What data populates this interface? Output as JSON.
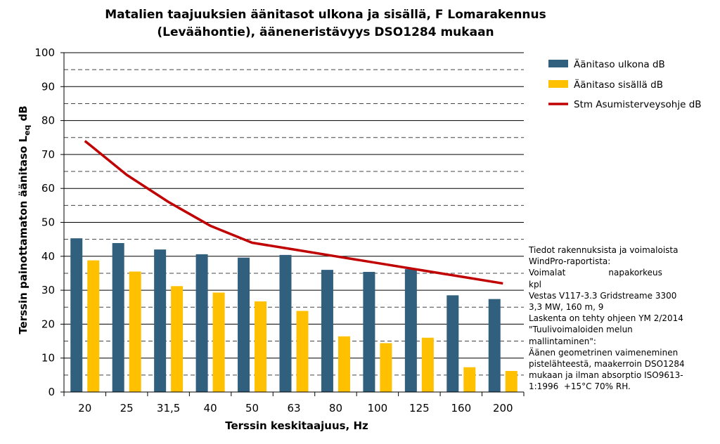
{
  "chart_data": {
    "type": "bar",
    "title_lines": [
      "Matalien taajuuksien äänitasot ulkona ja sisällä, F Lomarakennus",
      "(Leväähontie), ääneneristävyys DSO1284 mukaan"
    ],
    "xlabel": "Terssin keskitaajuus, Hz",
    "ylabel_main": "Terssin painottamaton äänitaso L",
    "ylabel_sub": "eq",
    "ylabel_unit": " dB",
    "categories": [
      "20",
      "25",
      "31,5",
      "40",
      "50",
      "63",
      "80",
      "100",
      "125",
      "160",
      "200"
    ],
    "ylim": [
      0,
      100
    ],
    "yticks": [
      0,
      10,
      20,
      30,
      40,
      50,
      60,
      70,
      80,
      90,
      100
    ],
    "grid": "dashed horizontal at 5-unit intervals",
    "legend_position": "right",
    "series": [
      {
        "name": "Äänitaso ulkona dB",
        "type": "bar",
        "color": "#31607f",
        "values": [
          45.3,
          43.9,
          42.0,
          40.6,
          39.6,
          40.4,
          36.0,
          35.4,
          36.2,
          28.5,
          27.4
        ]
      },
      {
        "name": "Äänitaso sisällä dB",
        "type": "bar",
        "color": "#ffc000",
        "values": [
          38.8,
          35.5,
          31.2,
          29.3,
          26.7,
          23.9,
          16.4,
          14.4,
          16.0,
          7.3,
          6.2
        ]
      },
      {
        "name": "Stm Asumisterveysohje dB",
        "type": "line",
        "color": "#c00000",
        "values": [
          74,
          64,
          56,
          49,
          44,
          42,
          40,
          38,
          36,
          34,
          32
        ]
      }
    ]
  },
  "note_lines": [
    "Tiedot rakennuksista ja voimaloista",
    "WindPro-raportista:",
    "Voimalat                napakorkeus",
    "kpl",
    "Vestas V117-3.3 Gridstreame 3300",
    "3,3 MW, 160 m, 9",
    "Laskenta on tehty ohjeen YM 2/2014",
    "\"Tuulivoimaloiden melun",
    "mallintaminen\":",
    "Äänen geometrinen vaimeneminen",
    "pistelähteestä, maakerroin DSO1284",
    "mukaan ja ilman absorptio ISO9613-",
    "1:1996  +15°C 70% RH."
  ]
}
